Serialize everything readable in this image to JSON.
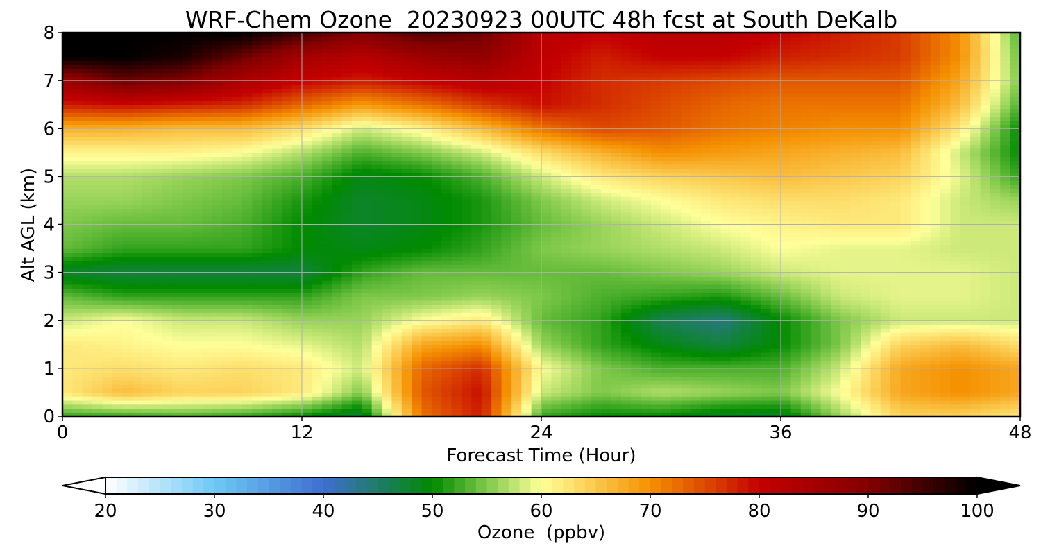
{
  "chart_data": {
    "type": "heatmap",
    "title": "WRF-Chem Ozone  20230923 00UTC 48h fcst at South DeKalb",
    "xlabel": "Forecast Time (Hour)",
    "ylabel": "Alt AGL (km)",
    "xlim": [
      0,
      48
    ],
    "ylim": [
      0,
      8
    ],
    "x_ticks": [
      "0",
      "12",
      "24",
      "36",
      "48"
    ],
    "y_ticks": [
      "0",
      "1",
      "2",
      "3",
      "4",
      "5",
      "6",
      "7",
      "8"
    ],
    "grid": true,
    "x": [
      0,
      3,
      6,
      9,
      12,
      15,
      18,
      21,
      24,
      27,
      30,
      33,
      36,
      39,
      42,
      45,
      48
    ],
    "y": [
      0,
      0.5,
      1,
      1.5,
      2,
      2.5,
      3,
      3.5,
      4,
      4.5,
      5,
      5.5,
      6,
      6.5,
      7,
      7.5,
      8
    ],
    "z": [
      [
        52,
        52,
        53,
        52,
        50,
        47,
        72,
        78,
        52,
        50,
        50,
        48,
        48,
        56,
        64,
        64,
        62
      ],
      [
        62,
        66,
        64,
        64,
        62,
        55,
        74,
        79,
        58,
        55,
        57,
        56,
        55,
        60,
        68,
        70,
        68
      ],
      [
        62,
        63,
        62,
        63,
        62,
        58,
        73,
        77,
        60,
        55,
        53,
        53,
        53,
        58,
        68,
        70,
        68
      ],
      [
        62,
        61,
        60,
        60,
        59,
        57,
        68,
        70,
        56,
        52,
        49,
        47,
        50,
        55,
        64,
        66,
        63
      ],
      [
        58,
        60,
        58,
        58,
        56,
        56,
        60,
        62,
        54,
        52,
        46,
        44,
        50,
        55,
        58,
        58,
        58
      ],
      [
        54,
        52,
        52,
        52,
        52,
        55,
        55,
        56,
        55,
        53,
        52,
        51,
        54,
        58,
        59,
        59,
        58
      ],
      [
        48,
        47,
        47,
        47,
        47,
        52,
        54,
        54,
        54,
        54,
        55,
        56,
        58,
        59,
        59,
        59,
        58
      ],
      [
        54,
        52,
        52,
        52,
        50,
        49,
        50,
        52,
        55,
        56,
        57,
        58,
        60,
        59,
        59,
        58,
        58
      ],
      [
        55,
        54,
        54,
        53,
        50,
        48,
        49,
        51,
        54,
        56,
        58,
        60,
        61,
        62,
        62,
        58,
        58
      ],
      [
        56,
        56,
        55,
        54,
        51,
        48,
        49,
        51,
        55,
        58,
        60,
        62,
        63,
        63,
        62,
        58,
        56
      ],
      [
        57,
        57,
        56,
        55,
        53,
        49,
        50,
        53,
        58,
        62,
        64,
        65,
        66,
        65,
        64,
        59,
        52
      ],
      [
        61,
        61,
        61,
        60,
        57,
        53,
        55,
        58,
        63,
        67,
        70,
        69,
        68,
        67,
        66,
        58,
        50
      ],
      [
        67,
        67,
        66,
        66,
        63,
        58,
        61,
        66,
        72,
        75,
        74,
        72,
        71,
        70,
        70,
        62,
        50
      ],
      [
        78,
        79,
        78,
        77,
        73,
        69,
        72,
        76,
        79,
        77,
        75,
        73,
        72,
        72,
        72,
        66,
        53
      ],
      [
        86,
        92,
        90,
        84,
        80,
        78,
        80,
        82,
        80,
        77,
        76,
        75,
        74,
        74,
        74,
        68,
        55
      ],
      [
        100,
        100,
        98,
        92,
        85,
        82,
        86,
        88,
        81,
        78,
        80,
        80,
        78,
        77,
        76,
        70,
        54
      ],
      [
        100,
        100,
        100,
        100,
        95,
        90,
        94,
        92,
        82,
        80,
        82,
        82,
        80,
        78,
        76,
        70,
        53
      ]
    ],
    "colorbar": {
      "label": "Ozone  (ppbv)",
      "ticks": [
        "20",
        "30",
        "40",
        "50",
        "60",
        "70",
        "80",
        "90",
        "100"
      ],
      "min": 20,
      "max": 100,
      "extend": "both",
      "stops": [
        [
          20,
          "#ffffff"
        ],
        [
          30,
          "#6ec8f5"
        ],
        [
          40,
          "#3f6ed0"
        ],
        [
          50,
          "#008a00"
        ],
        [
          55,
          "#7fc84a"
        ],
        [
          60,
          "#ffff9a"
        ],
        [
          65,
          "#fbc84c"
        ],
        [
          70,
          "#f59000"
        ],
        [
          75,
          "#dd4a00"
        ],
        [
          80,
          "#c40000"
        ],
        [
          90,
          "#840000"
        ],
        [
          100,
          "#000000"
        ]
      ]
    }
  }
}
